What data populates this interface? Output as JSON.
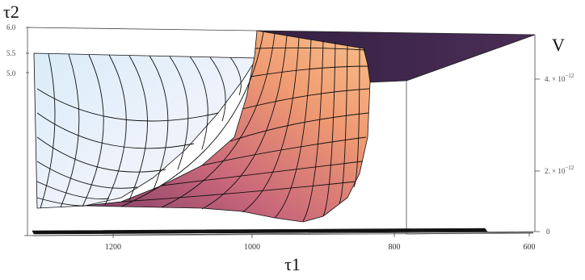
{
  "chart_data": {
    "type": "surface3d",
    "title": "",
    "axes": {
      "x": {
        "label": "τ1",
        "ticks": [
          "1200",
          "1000",
          "800",
          "600"
        ],
        "range": [
          1400,
          600
        ]
      },
      "y": {
        "label": "τ2",
        "ticks": [
          "5.0",
          "5.5",
          "6.0"
        ],
        "range": [
          5.0,
          6.0
        ]
      },
      "z": {
        "label": "V",
        "ticks": [
          {
            "mantissa": "4.",
            "exp": "−12"
          },
          {
            "mantissa": "2.",
            "exp": "−12"
          },
          {
            "mantissa": "0",
            "exp": ""
          }
        ],
        "range": [
          0,
          4.5e-12
        ]
      }
    },
    "colors": {
      "surface_low": "#cfe6f5",
      "surface_mid": "#c06a7a",
      "surface_high": "#f3a072",
      "top_plane": "#3b2347"
    },
    "grid": false,
    "legend": "none"
  }
}
